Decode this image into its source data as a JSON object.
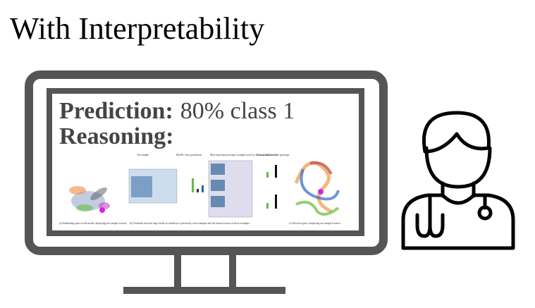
{
  "title": "With Interpretability",
  "screen": {
    "prediction_label": "Prediction:",
    "prediction_value": "80% class 1",
    "reasoning_label": "Reasoning:",
    "figure": {
      "test_sample": "Test sample",
      "class_predictions": "Model's class predictions",
      "prototypes": "Most important prototype examples used for decision calculations",
      "class_affiliation": "Class affiliation of the prototype",
      "caption_a": "(a) Embedding space of the model, displaying test sample location",
      "caption_b": "(b) Verifiable decision logic based on similarity to previously seen examples and the learned classes of these examples",
      "caption_c": "(c) Decision space, displaying test sample location"
    }
  }
}
